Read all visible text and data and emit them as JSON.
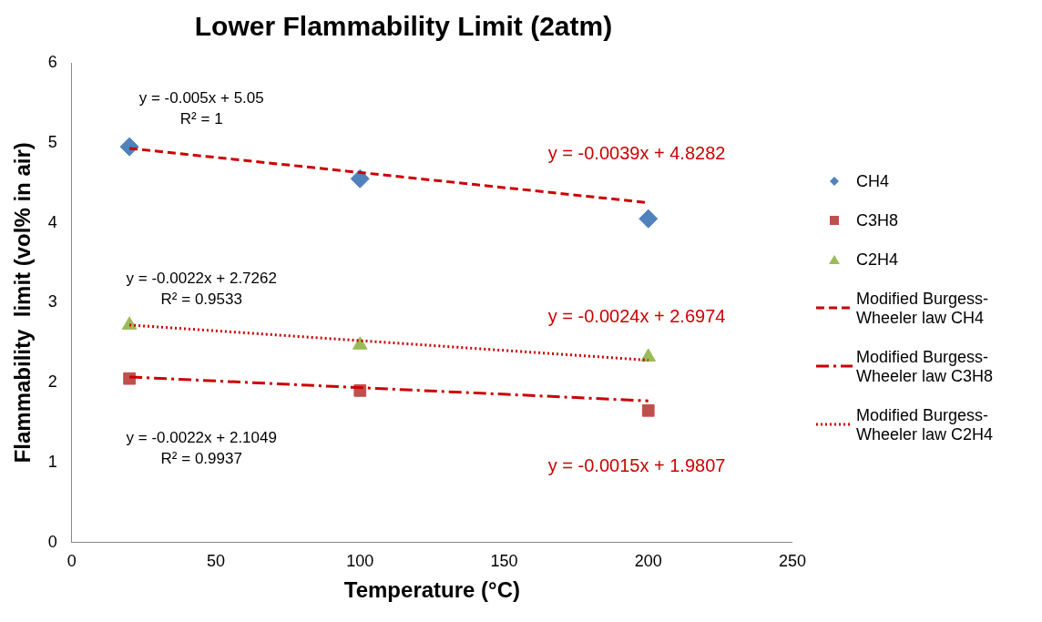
{
  "chart_data": {
    "type": "scatter",
    "title": "Lower Flammability Limit (2atm)",
    "xlabel": "Temperature (°C)",
    "ylabel": "Flammability  limit (vol% in air)",
    "xlim": [
      0,
      250
    ],
    "xticks": [
      0,
      50,
      100,
      150,
      200,
      250
    ],
    "ylim": [
      0,
      6
    ],
    "yticks": [
      0,
      1,
      2,
      3,
      4,
      5,
      6
    ],
    "grid": false,
    "legend": "right",
    "series": [
      {
        "name": "CH4",
        "color": "#4f81bd",
        "marker": "diamond",
        "x": [
          20,
          100,
          200
        ],
        "values": [
          4.95,
          4.55,
          4.05
        ]
      },
      {
        "name": "C3H8",
        "color": "#c0504d",
        "marker": "square",
        "x": [
          20,
          100,
          200
        ],
        "values": [
          2.05,
          1.9,
          1.65
        ]
      },
      {
        "name": "C2H4",
        "color": "#9bbb59",
        "marker": "triangle",
        "x": [
          20,
          100,
          200
        ],
        "values": [
          2.72,
          2.47,
          2.32
        ]
      },
      {
        "name": "Modified Burgess-Wheeler law CH4",
        "type": "line",
        "color": "#cc0000",
        "line_style": "dashed",
        "marker": "none",
        "x": [
          20,
          200
        ],
        "values": [
          4.93,
          4.25
        ]
      },
      {
        "name": "Modified Burgess-Wheeler law C3H8",
        "type": "line",
        "color": "#cc0000",
        "line_style": "dashdot",
        "marker": "none",
        "x": [
          20,
          200
        ],
        "values": [
          2.07,
          1.77
        ]
      },
      {
        "name": "Modified Burgess-Wheeler law C2H4",
        "type": "line",
        "color": "#cc0000",
        "line_style": "dotted",
        "marker": "none",
        "x": [
          20,
          200
        ],
        "values": [
          2.72,
          2.28
        ]
      }
    ],
    "annotations": [
      "y = -0.005x + 5.05\nR² = 1",
      "y = -0.0039x + 4.8282",
      "y = -0.0022x + 2.7262\nR² = 0.9533",
      "y = -0.0024x + 2.6974",
      "y = -0.0022x + 2.1049\nR² = 0.9937",
      "y = -0.0015x + 1.9807"
    ]
  }
}
